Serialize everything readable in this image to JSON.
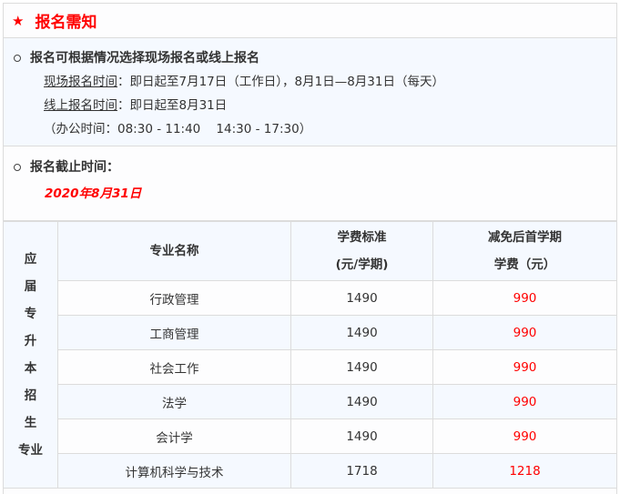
{
  "title": {
    "icon": "star-icon",
    "text": "报名需知"
  },
  "section1": {
    "heading": "报名可根据情况选择现场报名或线上报名",
    "onsite_label": "现场报名时间",
    "onsite_value": "：即日起至7月17日（工作日），8月1日—8月31日（每天）",
    "online_label": "线上报名时间",
    "online_value": "：即日起至8月31日",
    "office_hours": "（办公时间：08:30 - 11:40    14:30 - 17:30）"
  },
  "section2": {
    "heading": "报名截止时间：",
    "deadline": "2020年8月31日"
  },
  "table": {
    "side_label": [
      "应",
      "届",
      "专",
      "升",
      "本",
      "招",
      "生",
      "专业"
    ],
    "headers": {
      "name": "专业名称",
      "std1": "学费标准",
      "std2": "(元/学期)",
      "red1": "减免后首学期",
      "red2": "学费（元）"
    },
    "rows": [
      {
        "name": "行政管理",
        "standard": "1490",
        "reduced": "990"
      },
      {
        "name": "工商管理",
        "standard": "1490",
        "reduced": "990"
      },
      {
        "name": "社会工作",
        "standard": "1490",
        "reduced": "990"
      },
      {
        "name": "法学",
        "standard": "1490",
        "reduced": "990"
      },
      {
        "name": "会计学",
        "standard": "1490",
        "reduced": "990"
      },
      {
        "name": "计算机科学与技术",
        "standard": "1718",
        "reduced": "1218"
      }
    ]
  },
  "colors": {
    "accent": "#ff0000",
    "panel": "#f5f9ff",
    "border": "#dcdcdc"
  }
}
